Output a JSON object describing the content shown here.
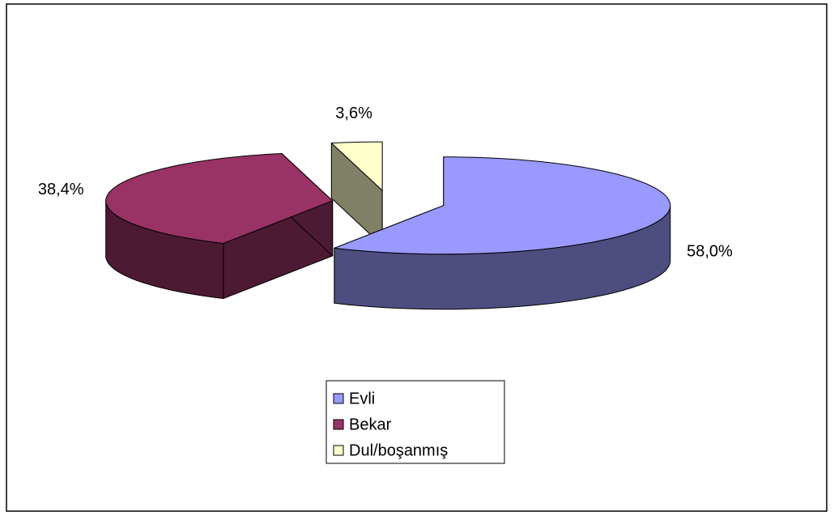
{
  "chart_data": {
    "type": "pie",
    "three_d": true,
    "exploded": true,
    "categories": [
      "Evli",
      "Bekar",
      "Dul/boşanmış"
    ],
    "values": [
      58.0,
      38.4,
      3.6
    ],
    "value_labels": [
      "58,0%",
      "38,4%",
      "3,6%"
    ],
    "colors": [
      "#9999ff",
      "#993366",
      "#ffffcc"
    ],
    "legend": "bottom"
  }
}
